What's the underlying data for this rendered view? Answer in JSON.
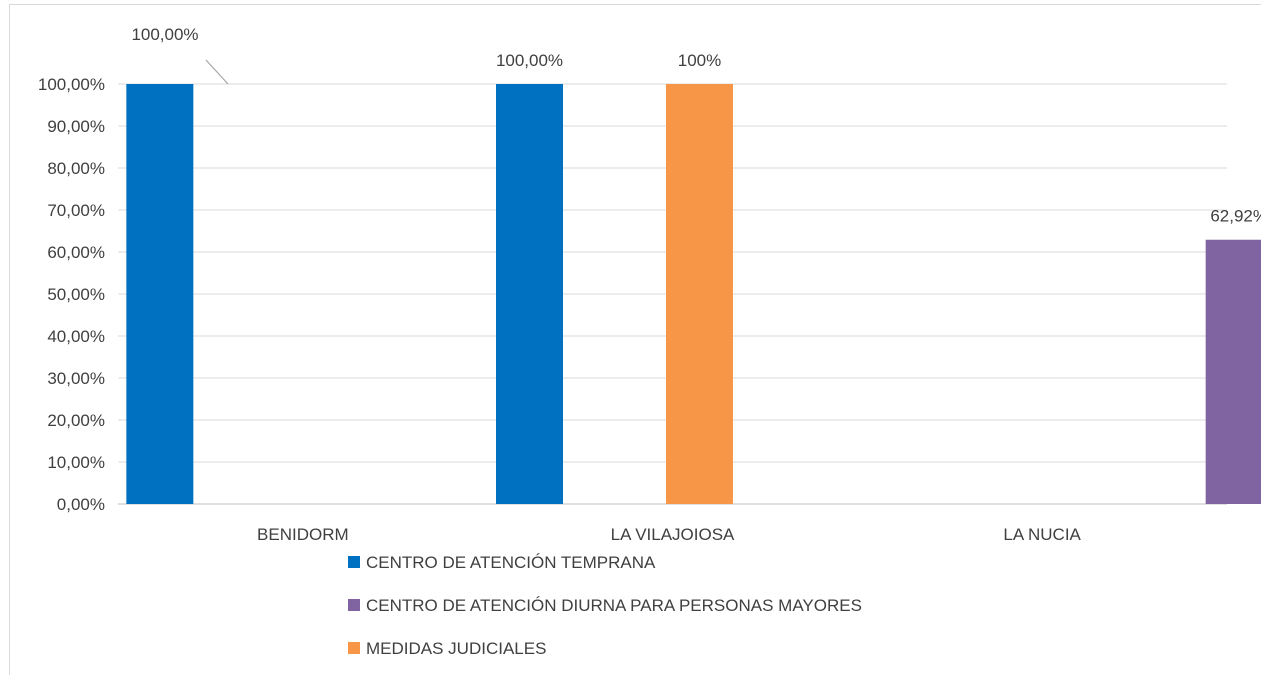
{
  "chart_data": {
    "type": "bar",
    "categories": [
      "BENIDORM",
      "LA VILAJOIOSA",
      "LA NUCIA"
    ],
    "series": [
      {
        "name": "CENTRO DE ATENCIÓN TEMPRANA",
        "color": "#0070c0",
        "values": [
          100,
          100,
          null
        ],
        "labels": [
          "100,00%",
          "100,00%",
          ""
        ]
      },
      {
        "name": "CENTRO DE ATENCIÓN DIURNA PARA PERSONAS MAYORES",
        "color": "#8064a2",
        "values": [
          null,
          null,
          62.92
        ],
        "labels": [
          "",
          "",
          "62,92%"
        ]
      },
      {
        "name": "MEDIDAS JUDICIALES",
        "color": "#f79646",
        "values": [
          null,
          100,
          null
        ],
        "labels": [
          "",
          "100%",
          ""
        ]
      }
    ],
    "y_ticks": [
      "0,00%",
      "10,00%",
      "20,00%",
      "30,00%",
      "40,00%",
      "50,00%",
      "60,00%",
      "70,00%",
      "80,00%",
      "90,00%",
      "100,00%"
    ],
    "ylim": [
      0,
      100
    ],
    "grid": true,
    "legend_position": "bottom"
  }
}
